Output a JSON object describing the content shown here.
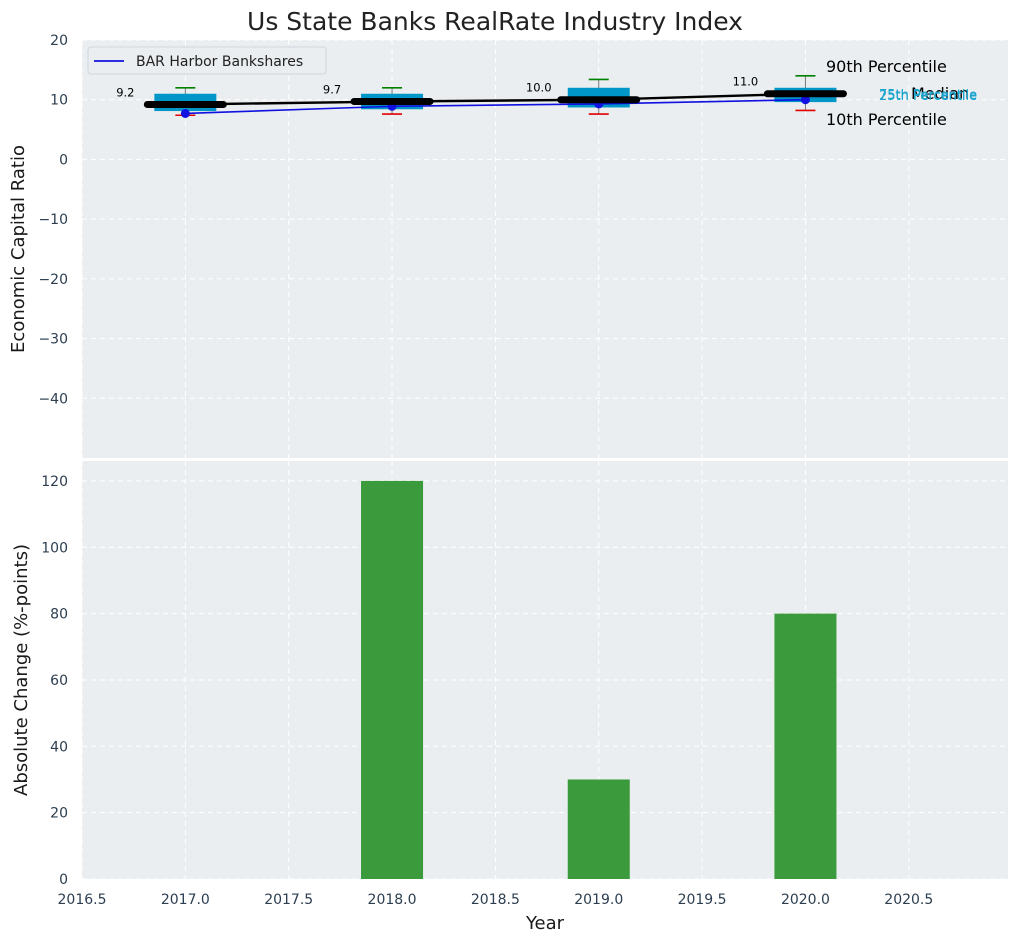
{
  "colors": {
    "panel_bg": "#eaeef0",
    "grid": "#ffffff",
    "box": "#0097c8",
    "company_line": "#1010e0",
    "median_line": "#000000",
    "whisker_high": "#008000",
    "whisker_low": "#e00000",
    "bar": "#3a9a3c",
    "pct25_75": "#19a4cf"
  },
  "chart_data": [
    {
      "type": "box-line",
      "title": "Us State Banks RealRate Industry Index",
      "ylabel": "Economic Capital Ratio",
      "ylim": [
        -50,
        20
      ],
      "yticks": [
        20,
        10,
        0,
        -10,
        -20,
        -30,
        -40
      ],
      "ytick_labels": [
        "20",
        "10",
        "0",
        "−10",
        "−20",
        "−30",
        "−40"
      ],
      "x": [
        2017,
        2018,
        2019,
        2020
      ],
      "legend": {
        "label": "BAR Harbor Bankshares",
        "placement": "top-left"
      },
      "company": {
        "name": "BAR Harbor Bankshares",
        "values": [
          7.7,
          8.9,
          9.3,
          10.0
        ]
      },
      "median": {
        "values": [
          9.2,
          9.7,
          10.0,
          11.0
        ],
        "labels": [
          "9.2",
          "9.7",
          "10.0",
          "11.0"
        ]
      },
      "p10": [
        7.4,
        7.6,
        7.6,
        8.2
      ],
      "p25": [
        8.1,
        8.4,
        8.7,
        9.6
      ],
      "p75": [
        11.0,
        11.0,
        12.0,
        12.0
      ],
      "p90": [
        12.0,
        12.0,
        13.4,
        14.0
      ],
      "annotations": {
        "p90": "90th Percentile",
        "median": "Median",
        "p10": "10th Percentile",
        "p75": "75th Percentile",
        "p25": "25th Percentile"
      }
    },
    {
      "type": "bar",
      "xlabel": "Year",
      "ylabel": "Absolute Change (%-points)",
      "ylim": [
        0,
        126
      ],
      "yticks": [
        0,
        20,
        40,
        60,
        80,
        100,
        120
      ],
      "xlim": [
        2016.5,
        2020.98
      ],
      "xticks": [
        2016.5,
        2017.0,
        2017.5,
        2018.0,
        2018.5,
        2019.0,
        2019.5,
        2020.0,
        2020.5
      ],
      "xtick_labels": [
        "2016.5",
        "2017.0",
        "2017.5",
        "2018.0",
        "2018.5",
        "2019.0",
        "2019.5",
        "2020.0",
        "2020.5"
      ],
      "x": [
        2017,
        2018,
        2019,
        2020
      ],
      "values": [
        0,
        120,
        30,
        80
      ],
      "bar_width": 0.3
    }
  ]
}
